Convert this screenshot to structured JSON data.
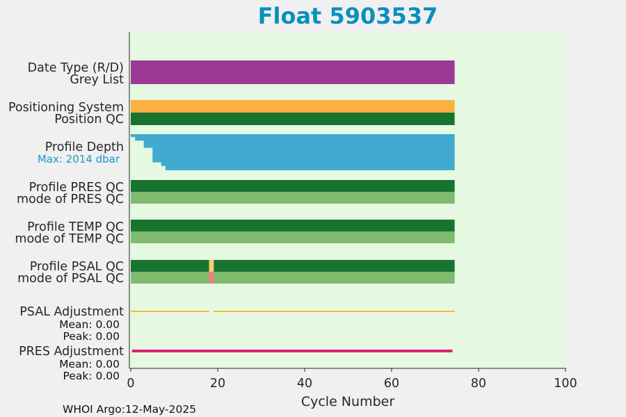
{
  "chart_data": {
    "type": "bar",
    "title": "Float 5903537",
    "xlabel": "Cycle Number",
    "xlim": [
      0,
      100
    ],
    "xticks": [
      0,
      20,
      40,
      60,
      80,
      100
    ],
    "background_color": "#e5f8e1",
    "figure_color": "#f0f0f0",
    "grid": false,
    "last_cycle": 74.5,
    "rows": [
      {
        "label": "Date Type (R/D)",
        "color": "#9a3a96"
      },
      {
        "label": "Grey List",
        "color": "#9a3a96"
      },
      {
        "label": "Positioning System",
        "color": "#fbb040"
      },
      {
        "label": "Position QC",
        "color": "#17742f"
      },
      {
        "label": "Profile Depth",
        "color": "#42aad0"
      },
      {
        "label": "Profile PRES QC",
        "color": "#17742f"
      },
      {
        "label": "mode of PRES QC",
        "color": "#7fba6f"
      },
      {
        "label": "Profile TEMP QC",
        "color": "#17742f"
      },
      {
        "label": "mode of TEMP QC",
        "color": "#7fba6f"
      },
      {
        "label": "Profile PSAL QC",
        "color": "#17742f"
      },
      {
        "label": "mode of PSAL QC",
        "color": "#7fba6f"
      }
    ],
    "profile_depth": {
      "max_label": "Max: 2014 dbar",
      "shallow_cycles": [
        {
          "cycle": 0,
          "fraction": 0.92
        },
        {
          "cycle": 1,
          "fraction": 0.82
        },
        {
          "cycle": 2,
          "fraction": 0.82
        },
        {
          "cycle": 3,
          "fraction": 0.62
        },
        {
          "cycle": 4,
          "fraction": 0.62
        },
        {
          "cycle": 5,
          "fraction": 0.22
        },
        {
          "cycle": 6,
          "fraction": 0.22
        },
        {
          "cycle": 7,
          "fraction": 0.12
        }
      ],
      "full_from_cycle": 8
    },
    "psal_anomaly": {
      "cycle": 18,
      "profile_color": "#fbcb7a",
      "mode_color": "#f08080"
    },
    "adjustments": [
      {
        "label": "PSAL Adjustment",
        "mean": "Mean: 0.00",
        "peak": "Peak: 0.00",
        "color": "#f5a300",
        "x_end": 74.5,
        "gap_cycle": 18,
        "thickness": 1.5
      },
      {
        "label": "PRES Adjustment",
        "mean": "Mean: 0.00",
        "peak": "Peak: 0.00",
        "color": "#dd1f79",
        "x_end": 74,
        "thickness": 4
      }
    ]
  },
  "footer": "WHOI Argo:12-May-2025"
}
